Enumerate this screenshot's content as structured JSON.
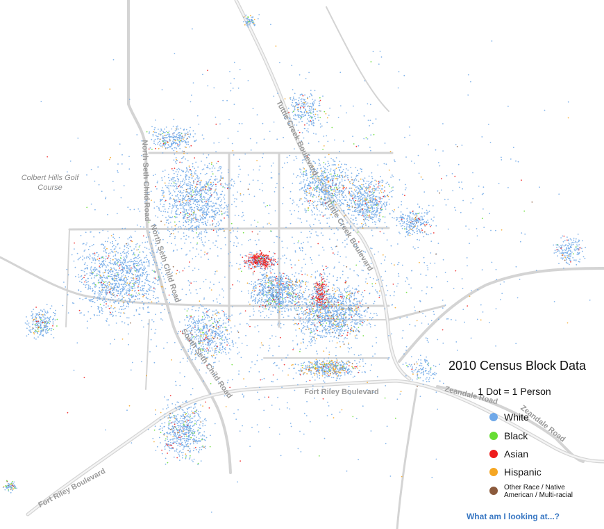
{
  "map": {
    "place_labels": [
      {
        "lines": [
          "Colbert Hills Golf",
          "Course"
        ]
      }
    ],
    "road_labels": [
      "Tuttle Creek Boulevard",
      "Tuttle Creek Boulevard",
      "North Seth Child Road",
      "North Seth Child Road",
      "South Seth Child Road",
      "Fort Riley Boulevard",
      "Fort Riley Boulevard",
      "Zeandale Road",
      "Zeandale Road"
    ]
  },
  "legend": {
    "title": "2010 Census Block Data",
    "subtitle": "1 Dot = 1 Person",
    "items": [
      {
        "lines": [
          "White"
        ],
        "color": "#6fa8e8"
      },
      {
        "lines": [
          "Black"
        ],
        "color": "#66dd33"
      },
      {
        "lines": [
          "Asian"
        ],
        "color": "#ee1c1c"
      },
      {
        "lines": [
          "Hispanic"
        ],
        "color": "#f5a623"
      },
      {
        "lines": [
          "Other Race / Native",
          "American / Multi-racial"
        ],
        "color": "#8b5a3c"
      }
    ],
    "link": "What am I looking at...?"
  }
}
